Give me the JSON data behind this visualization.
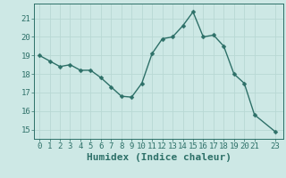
{
  "x": [
    0,
    1,
    2,
    3,
    4,
    5,
    6,
    7,
    8,
    9,
    10,
    11,
    12,
    13,
    14,
    15,
    16,
    17,
    18,
    19,
    20,
    21,
    23
  ],
  "y": [
    19.0,
    18.7,
    18.4,
    18.5,
    18.2,
    18.2,
    17.8,
    17.3,
    16.8,
    16.75,
    17.5,
    19.1,
    19.9,
    20.0,
    20.6,
    21.35,
    20.0,
    20.1,
    19.5,
    18.0,
    17.5,
    15.8,
    14.9
  ],
  "line_color": "#2d7068",
  "marker": "D",
  "marker_size": 2.5,
  "bg_color": "#cde8e5",
  "grid_color": "#b8d8d4",
  "xlabel": "Humidex (Indice chaleur)",
  "xlabel_fontsize": 8,
  "ylim": [
    14.5,
    21.8
  ],
  "xlim": [
    -0.5,
    23.8
  ],
  "yticks": [
    15,
    16,
    17,
    18,
    19,
    20,
    21
  ],
  "xticks": [
    0,
    1,
    2,
    3,
    4,
    5,
    6,
    7,
    8,
    9,
    10,
    11,
    12,
    13,
    14,
    15,
    16,
    17,
    18,
    19,
    20,
    21,
    23
  ],
  "tick_fontsize": 6.5,
  "line_width": 1.0
}
